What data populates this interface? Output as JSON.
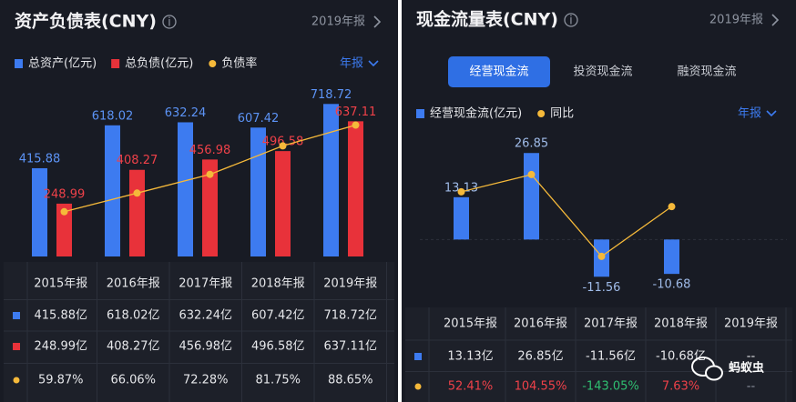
{
  "chart_data": [
    {
      "type": "bar",
      "title": "资产负债表(CNY)",
      "period": "2019年报",
      "period_menu": "年报",
      "categories": [
        "2015年报",
        "2016年报",
        "2017年报",
        "2018年报",
        "2019年报"
      ],
      "series": [
        {
          "name": "总资产(亿元)",
          "color": "#3d7bf0",
          "values": [
            415.88,
            618.02,
            632.24,
            607.42,
            718.72
          ]
        },
        {
          "name": "总负债(亿元)",
          "color": "#e8323a",
          "values": [
            248.99,
            408.27,
            456.98,
            496.58,
            637.11
          ]
        },
        {
          "name": "负债率",
          "color": "#f5b93a",
          "type": "line",
          "axis": "y2",
          "values": [
            59.87,
            66.06,
            72.28,
            81.75,
            88.65
          ]
        }
      ],
      "ylim": [
        0,
        780
      ],
      "y2lim": [
        45,
        100
      ],
      "table_rows": [
        [
          "415.88亿",
          "618.02亿",
          "632.24亿",
          "607.42亿",
          "718.72亿"
        ],
        [
          "248.99亿",
          "408.27亿",
          "456.98亿",
          "496.58亿",
          "637.11亿"
        ],
        [
          "59.87%",
          "66.06%",
          "72.28%",
          "81.75%",
          "88.65%"
        ]
      ]
    },
    {
      "type": "bar",
      "title": "现金流量表(CNY)",
      "period": "2019年报",
      "period_menu": "年报",
      "tabs": [
        "经营现金流",
        "投资现金流",
        "融资现金流"
      ],
      "active_tab": 0,
      "categories": [
        "2015年报",
        "2016年报",
        "2017年报",
        "2018年报",
        "2019年报"
      ],
      "series": [
        {
          "name": "经营现金流(亿元)",
          "color": "#3d7bf0",
          "values": [
            13.13,
            26.85,
            -11.56,
            -10.68,
            null
          ]
        },
        {
          "name": "同比",
          "color": "#f5b93a",
          "type": "line",
          "axis": "y2",
          "values": [
            52.41,
            104.55,
            -143.05,
            7.63,
            null
          ]
        }
      ],
      "ylim": [
        -16,
        32
      ],
      "y2lim": [
        -248,
        220
      ],
      "table_rows": [
        [
          "13.13亿",
          "26.85亿",
          "-11.56亿",
          "-10.68亿",
          "--"
        ],
        [
          "52.41%",
          "104.55%",
          "-143.05%",
          "7.63%",
          "--"
        ]
      ]
    }
  ],
  "watermark": "蚂蚁虫"
}
